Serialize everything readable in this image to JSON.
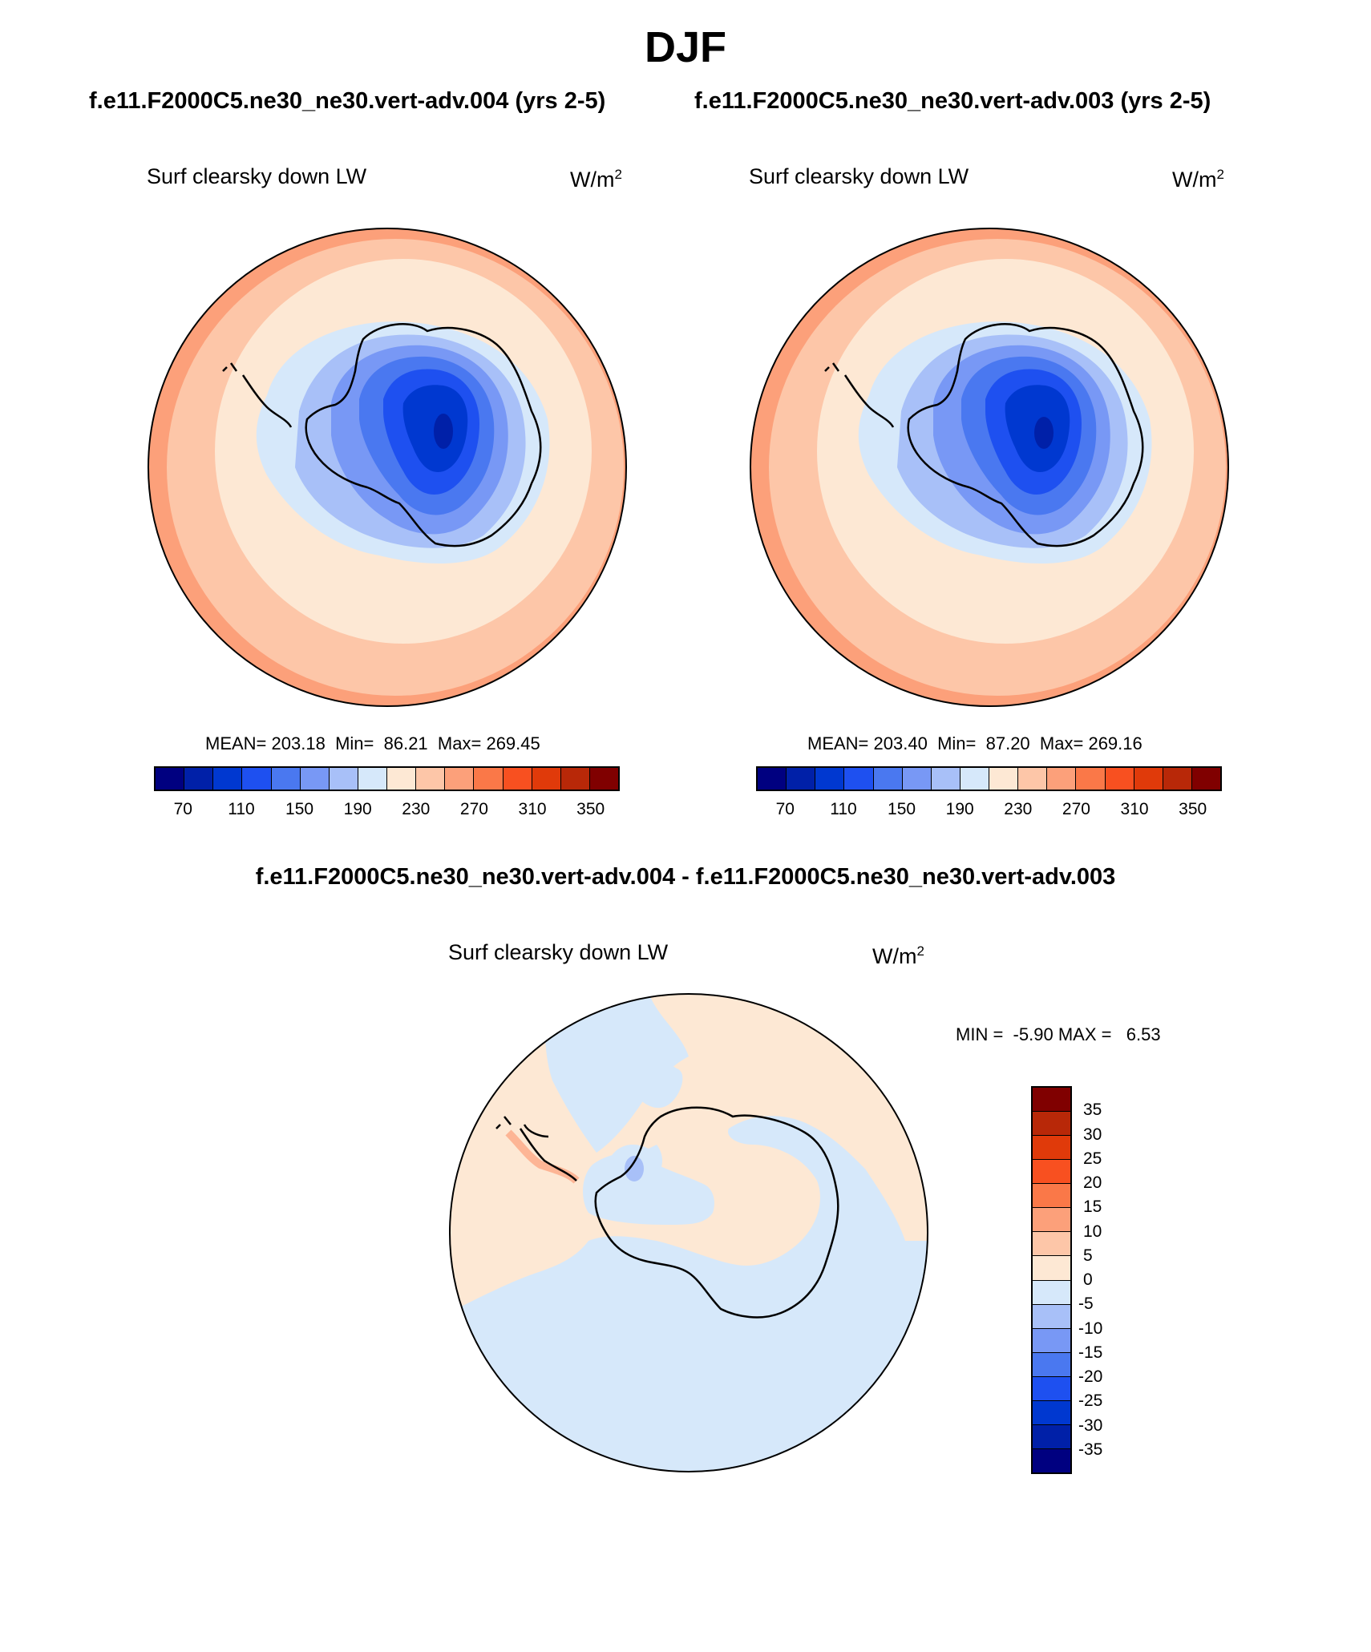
{
  "title": "DJF",
  "panels": [
    {
      "case": "f.e11.F2000C5.ne30_ne30.vert-adv.004 (yrs 2-5)",
      "variable": "Surf clearsky down LW",
      "units": "W/m",
      "units_sup": "2",
      "mean_label": "MEAN=",
      "mean": "203.18",
      "min_label": "Min=",
      "min": "86.21",
      "max_label": "Max=",
      "max": "269.45"
    },
    {
      "case": "f.e11.F2000C5.ne30_ne30.vert-adv.003 (yrs 2-5)",
      "variable": "Surf clearsky down LW",
      "units": "W/m",
      "units_sup": "2",
      "mean_label": "MEAN=",
      "mean": "203.40",
      "min_label": "Min=",
      "min": "87.20",
      "max_label": "Max=",
      "max": "269.16"
    }
  ],
  "colorbar": {
    "colors": [
      "#000080",
      "#0020a8",
      "#0038d0",
      "#1e50f0",
      "#4a78f0",
      "#7898f5",
      "#a8c0f8",
      "#d6e8fa",
      "#fde8d4",
      "#fdc6a8",
      "#fca07a",
      "#fa7848",
      "#f85020",
      "#e03a0a",
      "#b82808",
      "#800000"
    ],
    "tick_labels": [
      "70",
      "110",
      "150",
      "190",
      "230",
      "270",
      "310",
      "350"
    ]
  },
  "difference": {
    "title": "f.e11.F2000C5.ne30_ne30.vert-adv.004 - f.e11.F2000C5.ne30_ne30.vert-adv.003",
    "variable": "Surf clearsky down LW",
    "units": "W/m",
    "units_sup": "2",
    "min_label": "MIN =",
    "min": "-5.90",
    "max_label": "MAX =",
    "max": "6.53",
    "colorbar_colors": [
      "#800000",
      "#b82808",
      "#e03a0a",
      "#f85020",
      "#fa7848",
      "#fca07a",
      "#fdc6a8",
      "#fde8d4",
      "#d6e8fa",
      "#a8c0f8",
      "#7898f5",
      "#4a78f0",
      "#1e50f0",
      "#0038d0",
      "#0020a8",
      "#000080"
    ],
    "tick_labels": [
      "35",
      "30",
      "25",
      "20",
      "15",
      "10",
      "5",
      "0",
      "-5",
      "-10",
      "-15",
      "-20",
      "-25",
      "-30",
      "-35"
    ]
  }
}
